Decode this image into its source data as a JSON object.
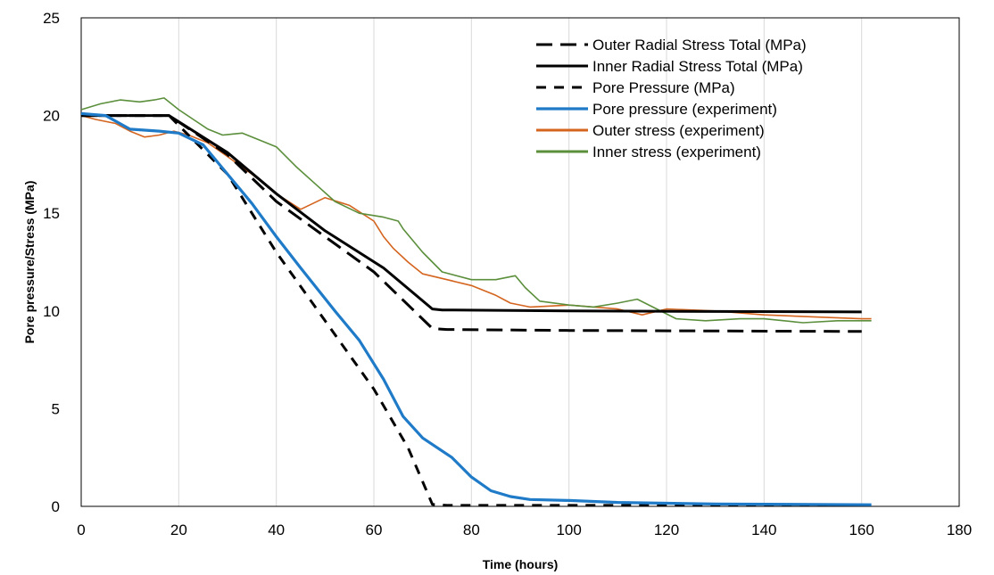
{
  "chart_data": {
    "type": "line",
    "title": "",
    "xlabel": "Time (hours)",
    "ylabel": "Pore pressure/Stress (MPa)",
    "xlim": [
      0,
      180
    ],
    "ylim": [
      0,
      25
    ],
    "xticks": [
      0,
      20,
      40,
      60,
      80,
      100,
      120,
      140,
      160,
      180
    ],
    "yticks": [
      0,
      5,
      10,
      15,
      20,
      25
    ],
    "grid": "vertical",
    "legend_position": "top-right",
    "series": [
      {
        "name": "Outer Radial Stress Total (MPa)",
        "color": "#000000",
        "style": "long-dash",
        "points": [
          [
            0,
            20
          ],
          [
            18,
            20
          ],
          [
            30,
            18
          ],
          [
            40,
            15.6
          ],
          [
            50,
            13.8
          ],
          [
            60,
            12
          ],
          [
            72,
            9.1
          ],
          [
            75,
            9.05
          ],
          [
            100,
            9
          ],
          [
            160,
            8.95
          ]
        ]
      },
      {
        "name": "Inner Radial Stress Total (MPa)",
        "color": "#000000",
        "style": "solid",
        "points": [
          [
            0,
            20
          ],
          [
            18,
            20
          ],
          [
            30,
            18.1
          ],
          [
            40,
            16
          ],
          [
            50,
            14.1
          ],
          [
            62,
            12.2
          ],
          [
            72,
            10.1
          ],
          [
            74,
            10.05
          ],
          [
            100,
            10
          ],
          [
            160,
            9.95
          ]
        ]
      },
      {
        "name": "Pore Pressure (MPa)",
        "color": "#000000",
        "style": "short-dash",
        "points": [
          [
            0,
            20
          ],
          [
            18,
            20
          ],
          [
            30,
            17
          ],
          [
            40,
            13
          ],
          [
            50,
            9.5
          ],
          [
            60,
            6
          ],
          [
            67,
            3
          ],
          [
            72,
            0.1
          ],
          [
            75,
            0.05
          ],
          [
            160,
            0.05
          ]
        ]
      },
      {
        "name": "Pore pressure (experiment)",
        "color": "#1f7bc8",
        "style": "solid-thick",
        "points": [
          [
            0,
            20.1
          ],
          [
            5,
            20
          ],
          [
            10,
            19.3
          ],
          [
            16,
            19.2
          ],
          [
            20,
            19.1
          ],
          [
            25,
            18.5
          ],
          [
            30,
            17
          ],
          [
            35,
            15.5
          ],
          [
            40,
            13.8
          ],
          [
            45,
            12.2
          ],
          [
            52,
            10
          ],
          [
            57,
            8.5
          ],
          [
            62,
            6.5
          ],
          [
            66,
            4.6
          ],
          [
            70,
            3.5
          ],
          [
            76,
            2.5
          ],
          [
            80,
            1.5
          ],
          [
            84,
            0.8
          ],
          [
            88,
            0.5
          ],
          [
            92,
            0.35
          ],
          [
            100,
            0.3
          ],
          [
            110,
            0.2
          ],
          [
            130,
            0.12
          ],
          [
            150,
            0.1
          ],
          [
            162,
            0.08
          ]
        ]
      },
      {
        "name": "Outer stress (experiment)",
        "color": "#d4641e",
        "style": "thin",
        "points": [
          [
            0,
            20
          ],
          [
            3,
            19.8
          ],
          [
            7,
            19.6
          ],
          [
            10,
            19.2
          ],
          [
            13,
            18.9
          ],
          [
            16,
            19
          ],
          [
            19,
            19.2
          ],
          [
            22,
            19
          ],
          [
            26,
            18.6
          ],
          [
            30,
            17.9
          ],
          [
            35,
            17
          ],
          [
            40,
            16
          ],
          [
            45,
            15.2
          ],
          [
            50,
            15.8
          ],
          [
            55,
            15.4
          ],
          [
            60,
            14.6
          ],
          [
            62,
            13.8
          ],
          [
            64,
            13.2
          ],
          [
            67,
            12.5
          ],
          [
            70,
            11.9
          ],
          [
            75,
            11.6
          ],
          [
            80,
            11.3
          ],
          [
            85,
            10.8
          ],
          [
            88,
            10.4
          ],
          [
            92,
            10.2
          ],
          [
            100,
            10.3
          ],
          [
            110,
            10.1
          ],
          [
            115,
            9.8
          ],
          [
            120,
            10.1
          ],
          [
            130,
            10
          ],
          [
            140,
            9.8
          ],
          [
            150,
            9.7
          ],
          [
            160,
            9.6
          ],
          [
            162,
            9.6
          ]
        ]
      },
      {
        "name": "Inner stress (experiment)",
        "color": "#5b8f3b",
        "style": "thin",
        "points": [
          [
            0,
            20.3
          ],
          [
            4,
            20.6
          ],
          [
            8,
            20.8
          ],
          [
            12,
            20.7
          ],
          [
            15,
            20.8
          ],
          [
            17,
            20.9
          ],
          [
            20,
            20.3
          ],
          [
            23,
            19.8
          ],
          [
            26,
            19.3
          ],
          [
            29,
            19
          ],
          [
            33,
            19.1
          ],
          [
            36,
            18.8
          ],
          [
            40,
            18.4
          ],
          [
            44,
            17.4
          ],
          [
            48,
            16.5
          ],
          [
            52,
            15.6
          ],
          [
            57,
            15
          ],
          [
            62,
            14.8
          ],
          [
            65,
            14.6
          ],
          [
            66,
            14.2
          ],
          [
            70,
            13
          ],
          [
            74,
            12
          ],
          [
            80,
            11.6
          ],
          [
            85,
            11.6
          ],
          [
            89,
            11.8
          ],
          [
            91,
            11.2
          ],
          [
            94,
            10.5
          ],
          [
            100,
            10.3
          ],
          [
            105,
            10.2
          ],
          [
            110,
            10.4
          ],
          [
            114,
            10.6
          ],
          [
            118,
            10.1
          ],
          [
            122,
            9.6
          ],
          [
            128,
            9.5
          ],
          [
            135,
            9.6
          ],
          [
            140,
            9.6
          ],
          [
            148,
            9.4
          ],
          [
            155,
            9.5
          ],
          [
            162,
            9.5
          ]
        ]
      }
    ]
  }
}
